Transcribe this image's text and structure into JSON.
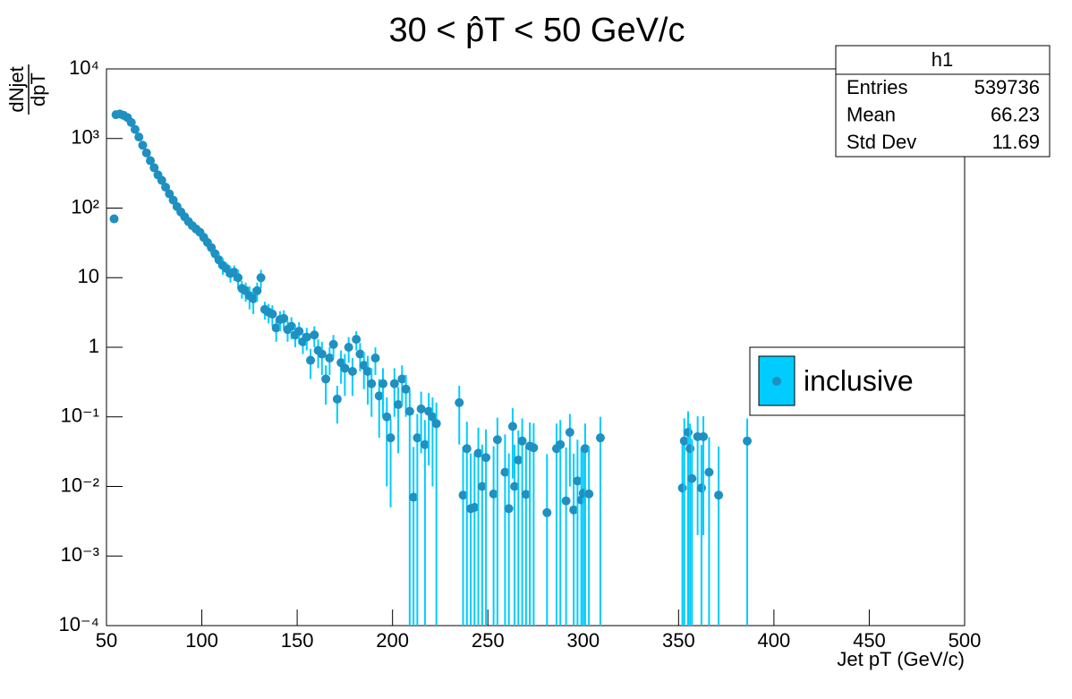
{
  "chart_data": {
    "type": "errorbar_scatter",
    "title": "30 < p̂T < 50 GeV/c",
    "x_label": "Jet pT (GeV/c)",
    "y_label": {
      "numerator": "dNjet",
      "denominator": "dpT"
    },
    "xlim": [
      50,
      500
    ],
    "xticks": [
      50,
      100,
      150,
      200,
      250,
      300,
      350,
      400,
      450,
      500
    ],
    "ylim": [
      0.0001,
      10000
    ],
    "log_y": true,
    "yticks": [
      {
        "value": 0.0001,
        "label": "10⁻⁴"
      },
      {
        "value": 0.001,
        "label": "10⁻³"
      },
      {
        "value": 0.01,
        "label": "10⁻²"
      },
      {
        "value": 0.1,
        "label": "10⁻¹"
      },
      1,
      10,
      {
        "value": 100,
        "label": "10²"
      },
      {
        "value": 1000,
        "label": "10³"
      },
      {
        "value": 10000,
        "label": "10⁴"
      }
    ],
    "stats": {
      "title": "h1",
      "rows": [
        [
          "Entries",
          "539736"
        ],
        [
          "Mean",
          "66.23"
        ],
        [
          "Std Dev",
          "11.69"
        ]
      ]
    },
    "legend_position": "right",
    "series": [
      {
        "name": "inclusive",
        "color": "#00ccff",
        "marker_color": "#1f90c0",
        "x": [
          54,
          55,
          57,
          59,
          61,
          63,
          65,
          67,
          69,
          71,
          73,
          75,
          77,
          79,
          81,
          83,
          85,
          87,
          89,
          91,
          93,
          95,
          97,
          99,
          101,
          103,
          105,
          107,
          109,
          111,
          113,
          115,
          117,
          119,
          121,
          123,
          125,
          127,
          129,
          131,
          133,
          135,
          137,
          139,
          141,
          143,
          145,
          147,
          149,
          151,
          153,
          155,
          157,
          159,
          161,
          163,
          165,
          167,
          169,
          171,
          173,
          175,
          177,
          179,
          181,
          183,
          185,
          187,
          189,
          191,
          193,
          195,
          197,
          199,
          201,
          203,
          205,
          207,
          209,
          211,
          213,
          215,
          217,
          219,
          221,
          223,
          235,
          237,
          239,
          241,
          243,
          245,
          247,
          249,
          253,
          255,
          259,
          261,
          263,
          264,
          266,
          268,
          270,
          272,
          274,
          281,
          286,
          288,
          291,
          293,
          295,
          297,
          299,
          300,
          301,
          303,
          309,
          352,
          353,
          355,
          356,
          357,
          360,
          362,
          363,
          366,
          371,
          386
        ],
        "values": [
          70,
          2200,
          2250,
          2150,
          2000,
          1700,
          1350,
          1050,
          800,
          620,
          480,
          380,
          300,
          250,
          200,
          160,
          130,
          105,
          88,
          75,
          64,
          56,
          50,
          45,
          38,
          32,
          27,
          22,
          18,
          15,
          13.5,
          11.5,
          12,
          10,
          7,
          6.5,
          5.5,
          5,
          6.5,
          10,
          3.5,
          3.2,
          3,
          1.9,
          2.5,
          2.6,
          1.8,
          2,
          1.5,
          1.7,
          1.2,
          1.4,
          0.65,
          1.5,
          0.9,
          0.8,
          0.35,
          0.7,
          1.1,
          0.18,
          0.6,
          0.5,
          1,
          0.45,
          1.3,
          0.8,
          0.55,
          0.45,
          0.3,
          0.7,
          0.2,
          0.3,
          0.1,
          0.05,
          0.3,
          0.15,
          0.35,
          0.25,
          0.12,
          0.007,
          0.05,
          0.13,
          0.04,
          0.12,
          0.1,
          0.08,
          0.16,
          0.0075,
          0.035,
          0.0048,
          0.005,
          0.03,
          0.01,
          0.026,
          0.0078,
          0.047,
          0.016,
          0.0048,
          0.073,
          0.01,
          0.024,
          0.045,
          0.0077,
          0.038,
          0.036,
          0.0042,
          0.035,
          0.04,
          0.0062,
          0.06,
          0.0046,
          0.012,
          0.0064,
          0.008,
          0.035,
          0.0078,
          0.05,
          0.0095,
          0.045,
          0.06,
          0.035,
          0.013,
          0.052,
          0.0095,
          0.052,
          0.016,
          0.0075,
          0.045
        ],
        "errors": [
          8,
          50,
          50,
          50,
          45,
          40,
          35,
          30,
          28,
          25,
          22,
          20,
          17,
          16,
          14,
          13,
          11,
          10,
          9,
          8,
          8,
          7,
          7,
          6,
          6,
          5,
          5,
          4,
          4,
          4,
          3,
          3,
          3,
          3,
          2,
          2,
          2,
          2,
          2,
          3,
          1,
          1,
          1,
          0.7,
          0.8,
          0.8,
          0.6,
          0.7,
          0.5,
          0.6,
          0.4,
          0.5,
          0.3,
          0.5,
          0.4,
          0.4,
          0.2,
          0.3,
          0.4,
          0.1,
          0.3,
          0.3,
          0.4,
          0.25,
          0.4,
          0.35,
          0.3,
          0.3,
          0.2,
          0.3,
          0.15,
          0.2,
          0.09,
          0.045,
          0.2,
          0.12,
          0.2,
          0.15,
          0.12,
          0.03,
          0.06,
          0.1,
          0.05,
          0.1,
          0.09,
          0.08,
          0.12,
          0.03,
          0.05,
          0.025,
          0.025,
          0.04,
          0.03,
          0.04,
          0.03,
          0.05,
          0.04,
          0.025,
          0.06,
          0.03,
          0.04,
          0.05,
          0.03,
          0.045,
          0.045,
          0.025,
          0.045,
          0.05,
          0.03,
          0.05,
          0.025,
          0.035,
          0.03,
          0.03,
          0.045,
          0.03,
          0.05,
          0.03,
          0.05,
          0.06,
          0.045,
          0.035,
          0.05,
          0.03,
          0.05,
          0.035,
          0.03,
          0.05
        ]
      }
    ]
  }
}
